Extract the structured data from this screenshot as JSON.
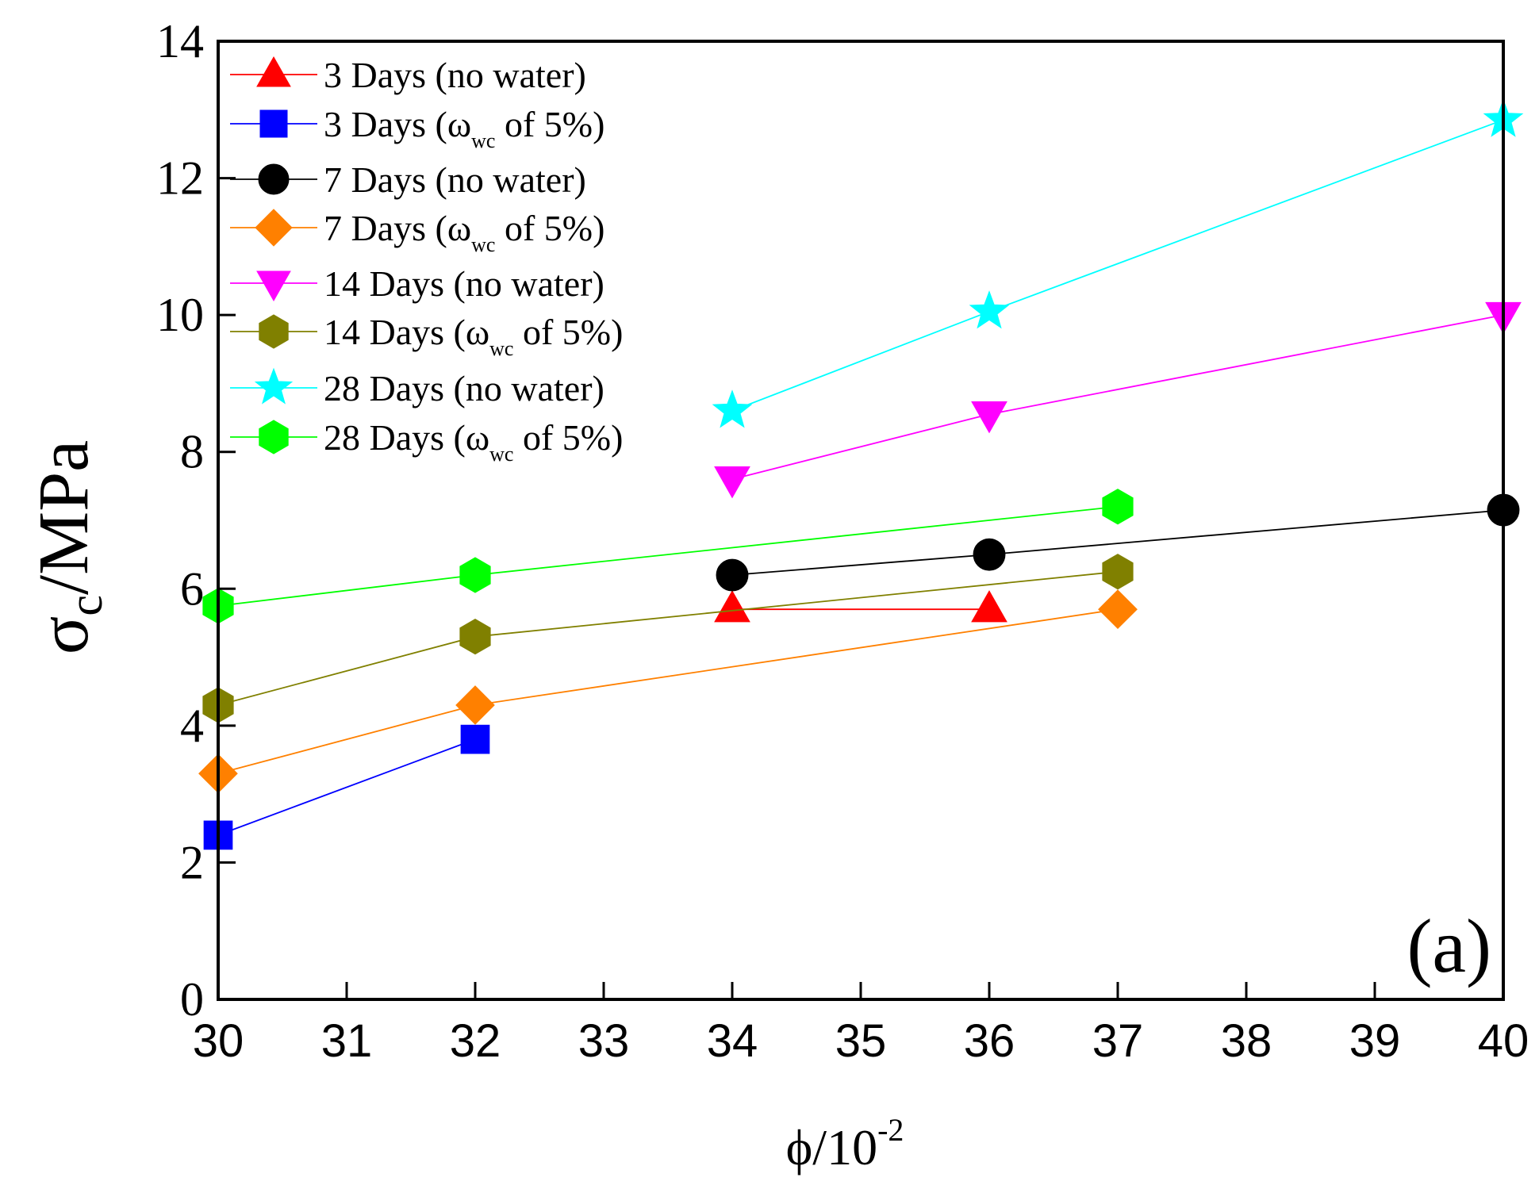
{
  "chart_data": {
    "type": "line",
    "panel_label": "(a)",
    "xlabel": {
      "main": "ϕ/10",
      "sup": "-2"
    },
    "ylabel": {
      "main": "σ",
      "sub": "c",
      "rest": "/MPa"
    },
    "xlim": [
      30,
      40
    ],
    "ylim": [
      0,
      14
    ],
    "x_ticks": [
      "30",
      "31",
      "32",
      "33",
      "34",
      "35",
      "36",
      "37",
      "38",
      "39",
      "40"
    ],
    "y_ticks": [
      "0",
      "2",
      "4",
      "6",
      "8",
      "10",
      "12",
      "14"
    ],
    "legend_position": "top-left",
    "series": [
      {
        "name": "3 Days (no water)",
        "label": {
          "pre": "3 Days (no water)"
        },
        "color": "#ff0000",
        "marker": "triangle-up",
        "x": [
          34,
          36
        ],
        "y": [
          5.7,
          5.7
        ]
      },
      {
        "name": "3 Days (ωwc of 5%)",
        "label": {
          "pre": "3 Days (ω",
          "sub": "wc",
          "post": " of 5%)"
        },
        "color": "#0000ff",
        "marker": "square",
        "x": [
          30,
          32
        ],
        "y": [
          2.4,
          3.8
        ]
      },
      {
        "name": "7 Days (no water)",
        "label": {
          "pre": "7 Days (no water)"
        },
        "color": "#000000",
        "marker": "circle",
        "x": [
          34,
          36,
          40
        ],
        "y": [
          6.2,
          6.5,
          7.15
        ]
      },
      {
        "name": "7 Days (ωwc of 5%)",
        "label": {
          "pre": "7 Days (ω",
          "sub": "wc",
          "post": " of 5%)"
        },
        "color": "#ff8000",
        "marker": "diamond",
        "x": [
          30,
          32,
          37
        ],
        "y": [
          3.3,
          4.3,
          5.7
        ]
      },
      {
        "name": "14 Days (no water)",
        "label": {
          "pre": "14 Days (no water)"
        },
        "color": "#ff00ff",
        "marker": "triangle-down",
        "x": [
          34,
          36,
          40
        ],
        "y": [
          7.6,
          8.55,
          10.0
        ]
      },
      {
        "name": "14 Days (ωwc of 5%)",
        "label": {
          "pre": "14 Days (ω",
          "sub": "wc",
          "post": " of 5%)"
        },
        "color": "#808000",
        "marker": "hexagon",
        "x": [
          30,
          32,
          37
        ],
        "y": [
          4.3,
          5.3,
          6.25
        ]
      },
      {
        "name": "28 Days (no water)",
        "label": {
          "pre": "28 Days (no water)"
        },
        "color": "#00ffff",
        "marker": "star",
        "x": [
          34,
          36,
          40
        ],
        "y": [
          8.6,
          10.05,
          12.85
        ]
      },
      {
        "name": "28 Days (ωwc of 5%)",
        "label": {
          "pre": "28 Days (ω",
          "sub": "wc",
          "post": " of 5%)"
        },
        "color": "#00ff00",
        "marker": "hexagon",
        "x": [
          30,
          32,
          37
        ],
        "y": [
          5.75,
          6.2,
          7.2
        ]
      }
    ]
  }
}
